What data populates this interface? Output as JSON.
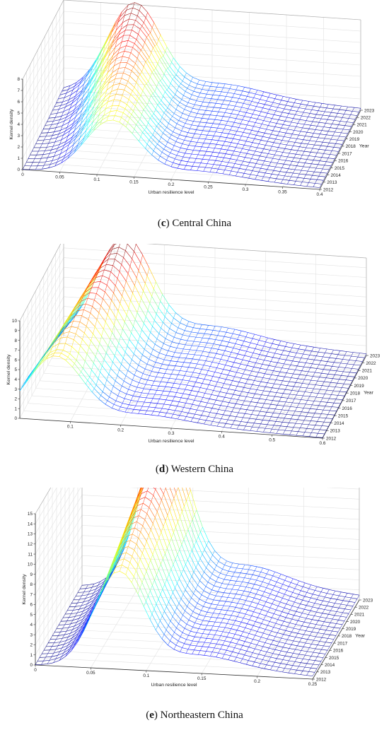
{
  "chart_data": [
    {
      "type": "surface",
      "panel_letter": "c",
      "caption": "Central China",
      "xlabel": "Urban resilience level",
      "ylabel": "Year",
      "zlabel": "Kernel density",
      "x_ticks": [
        "0",
        "0.05",
        "0.1",
        "0.15",
        "0.2",
        "0.25",
        "0.3",
        "0.35",
        "0.4"
      ],
      "y_ticks": [
        "2012",
        "2013",
        "2014",
        "2015",
        "2016",
        "2017",
        "2018",
        "2019",
        "2020",
        "2021",
        "2022",
        "2023"
      ],
      "z_ticks": [
        "0",
        "1",
        "2",
        "3",
        "4",
        "5",
        "6",
        "7",
        "8"
      ],
      "xlim": [
        0,
        0.4
      ],
      "ylim": [
        2012,
        2023
      ],
      "zlim": [
        0,
        8
      ],
      "peak_value_by_year": [
        4.8,
        5.0,
        5.3,
        5.6,
        5.9,
        6.2,
        6.5,
        6.8,
        7.1,
        7.4,
        7.7,
        8.0
      ],
      "peak_x_by_year": [
        0.12,
        0.12,
        0.115,
        0.115,
        0.11,
        0.11,
        0.105,
        0.105,
        0.1,
        0.1,
        0.095,
        0.095
      ]
    },
    {
      "type": "surface",
      "panel_letter": "d",
      "caption": "Western China",
      "xlabel": "Urban resilience level",
      "ylabel": "Year",
      "zlabel": "Kernel density",
      "x_ticks": [
        "0.1",
        "0.2",
        "0.3",
        "0.4",
        "0.5",
        "0.6"
      ],
      "y_ticks": [
        "2012",
        "2013",
        "2014",
        "2015",
        "2016",
        "2017",
        "2018",
        "2019",
        "2020",
        "2021",
        "2022",
        "2023"
      ],
      "z_ticks": [
        "0",
        "1",
        "2",
        "3",
        "4",
        "5",
        "6",
        "7",
        "8",
        "9",
        "10"
      ],
      "xlim": [
        0,
        0.6
      ],
      "ylim": [
        2012,
        2023
      ],
      "zlim": [
        0,
        10
      ],
      "peak_value_by_year": [
        6.5,
        6.4,
        6.9,
        7.2,
        7.6,
        8.0,
        8.4,
        8.8,
        9.2,
        9.6,
        10.0,
        10.4
      ],
      "peak_x_by_year": [
        0.07,
        0.07,
        0.075,
        0.08,
        0.085,
        0.09,
        0.095,
        0.1,
        0.105,
        0.11,
        0.115,
        0.12
      ]
    },
    {
      "type": "surface",
      "panel_letter": "e",
      "caption": "Northeastern China",
      "xlabel": "Urban resilience level",
      "ylabel": "Year",
      "zlabel": "Kernel density",
      "x_ticks": [
        "0",
        "0.05",
        "0.1",
        "0.15",
        "0.2",
        "0.25"
      ],
      "y_ticks": [
        "2012",
        "2013",
        "2014",
        "2015",
        "2016",
        "2017",
        "2018",
        "2019",
        "2020",
        "2021",
        "2022",
        "2023"
      ],
      "z_ticks": [
        "0",
        "1",
        "2",
        "3",
        "4",
        "5",
        "6",
        "7",
        "8",
        "9",
        "10",
        "11",
        "12",
        "13",
        "14",
        "15"
      ],
      "xlim": [
        0,
        0.25
      ],
      "ylim": [
        2012,
        2023
      ],
      "zlim": [
        0,
        15
      ],
      "peak_value_by_year": [
        9.5,
        10.0,
        10.5,
        11.0,
        11.5,
        12.0,
        12.5,
        13.0,
        13.5,
        14.0,
        14.5,
        15.0
      ],
      "peak_x_by_year": [
        0.075,
        0.075,
        0.075,
        0.075,
        0.075,
        0.075,
        0.075,
        0.075,
        0.075,
        0.075,
        0.075,
        0.075
      ]
    }
  ]
}
